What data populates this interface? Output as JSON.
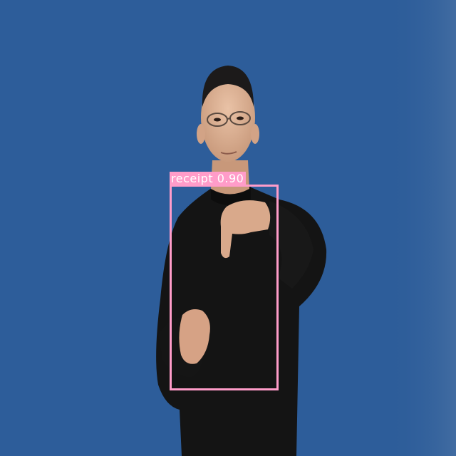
{
  "scene": {
    "background_color": "#2d5d9a",
    "subject": "person",
    "clothing_color": "#141414"
  },
  "detection": {
    "class_name": "receipt",
    "confidence": "0.90",
    "box_color": "#ff9cc9"
  }
}
